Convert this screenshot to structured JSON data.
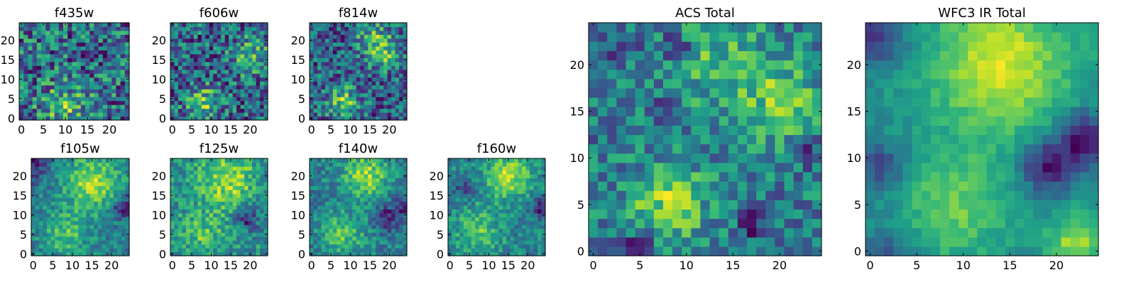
{
  "chart_data": [
    {
      "type": "heatmap",
      "title": "f435w",
      "xlim": [
        -0.5,
        24.5
      ],
      "ylim": [
        -0.5,
        24.5
      ],
      "xticks": [
        0,
        5,
        10,
        15,
        20
      ],
      "yticks": [
        0,
        5,
        10,
        15,
        20
      ],
      "colormap": "viridis",
      "grid": false,
      "seed": 11,
      "noise": 0.95,
      "hotspots": [
        [
          10,
          3,
          0.4,
          4
        ]
      ],
      "coldspots": []
    },
    {
      "type": "heatmap",
      "title": "f606w",
      "xlim": [
        -0.5,
        24.5
      ],
      "ylim": [
        -0.5,
        24.5
      ],
      "xticks": [
        0,
        5,
        10,
        15,
        20
      ],
      "yticks": [
        0,
        5,
        10,
        15,
        20
      ],
      "colormap": "viridis",
      "grid": false,
      "seed": 23,
      "noise": 0.9,
      "hotspots": [
        [
          8,
          4,
          0.5,
          3
        ],
        [
          20,
          16,
          0.5,
          3
        ]
      ],
      "coldspots": []
    },
    {
      "type": "heatmap",
      "title": "f814w",
      "xlim": [
        -0.5,
        24.5
      ],
      "ylim": [
        -0.5,
        24.5
      ],
      "xticks": [
        0,
        5,
        10,
        15,
        20
      ],
      "yticks": [
        0,
        5,
        10,
        15,
        20
      ],
      "colormap": "viridis",
      "grid": false,
      "seed": 37,
      "noise": 0.85,
      "hotspots": [
        [
          8,
          4,
          0.6,
          3
        ],
        [
          19,
          17,
          0.55,
          3
        ],
        [
          15,
          21,
          0.4,
          3
        ]
      ],
      "coldspots": []
    },
    {
      "type": "heatmap",
      "title": "f105w",
      "xlim": [
        -0.5,
        24.5
      ],
      "ylim": [
        -0.5,
        24.5
      ],
      "xticks": [
        0,
        5,
        10,
        15,
        20
      ],
      "yticks": [
        0,
        5,
        10,
        15,
        20
      ],
      "colormap": "viridis",
      "grid": false,
      "seed": 41,
      "noise": 0.45,
      "hotspots": [
        [
          15,
          18,
          0.6,
          5
        ],
        [
          8,
          5,
          0.4,
          4
        ]
      ],
      "coldspots": [
        [
          23,
          12,
          0.5,
          2
        ],
        [
          0,
          23,
          0.4,
          3
        ]
      ]
    },
    {
      "type": "heatmap",
      "title": "f125w",
      "xlim": [
        -0.5,
        24.5
      ],
      "ylim": [
        -0.5,
        24.5
      ],
      "xticks": [
        0,
        5,
        10,
        15,
        20
      ],
      "yticks": [
        0,
        5,
        10,
        15,
        20
      ],
      "colormap": "viridis",
      "grid": false,
      "seed": 53,
      "noise": 0.55,
      "hotspots": [
        [
          14,
          19,
          0.5,
          5
        ],
        [
          8,
          5,
          0.3,
          4
        ]
      ],
      "coldspots": [
        [
          19,
          9,
          0.5,
          2
        ]
      ]
    },
    {
      "type": "heatmap",
      "title": "f140w",
      "xlim": [
        -0.5,
        24.5
      ],
      "ylim": [
        -0.5,
        24.5
      ],
      "xticks": [
        0,
        5,
        10,
        15,
        20
      ],
      "yticks": [
        0,
        5,
        10,
        15,
        20
      ],
      "colormap": "viridis",
      "grid": false,
      "seed": 67,
      "noise": 0.5,
      "hotspots": [
        [
          14,
          20,
          0.6,
          4
        ],
        [
          8,
          5,
          0.4,
          4
        ]
      ],
      "coldspots": [
        [
          19,
          9,
          0.5,
          2
        ],
        [
          23,
          12,
          0.4,
          2
        ]
      ]
    },
    {
      "type": "heatmap",
      "title": "f160w",
      "xlim": [
        -0.5,
        24.5
      ],
      "ylim": [
        -0.5,
        24.5
      ],
      "xticks": [
        0,
        5,
        10,
        15,
        20
      ],
      "yticks": [
        0,
        5,
        10,
        15,
        20
      ],
      "colormap": "viridis",
      "grid": false,
      "seed": 79,
      "noise": 0.5,
      "hotspots": [
        [
          15,
          20,
          0.6,
          4
        ],
        [
          7,
          6,
          0.4,
          4
        ]
      ],
      "coldspots": [
        [
          23,
          12,
          0.5,
          2
        ],
        [
          4,
          17,
          0.4,
          2
        ]
      ]
    },
    {
      "type": "heatmap",
      "title": "ACS Total",
      "xlim": [
        -0.5,
        24.5
      ],
      "ylim": [
        -0.5,
        24.5
      ],
      "xticks": [
        0,
        5,
        10,
        15,
        20
      ],
      "yticks": [
        0,
        5,
        10,
        15,
        20
      ],
      "colormap": "viridis",
      "grid": false,
      "seed": 97,
      "noise": 0.8,
      "hotspots": [
        [
          8,
          5,
          0.7,
          3
        ],
        [
          20,
          16,
          0.6,
          3
        ],
        [
          13,
          21,
          0.45,
          4
        ]
      ],
      "coldspots": [
        [
          3,
          22,
          0.7,
          1
        ],
        [
          9,
          22,
          0.7,
          1
        ],
        [
          8,
          15,
          0.7,
          1
        ],
        [
          17,
          3,
          0.6,
          1
        ],
        [
          5,
          1,
          0.6,
          1
        ],
        [
          23,
          11,
          0.6,
          1
        ]
      ]
    },
    {
      "type": "heatmap",
      "title": "WFC3 IR Total",
      "xlim": [
        -0.5,
        24.5
      ],
      "ylim": [
        -0.5,
        24.5
      ],
      "xticks": [
        0,
        5,
        10,
        15,
        20
      ],
      "yticks": [
        0,
        5,
        10,
        15,
        20
      ],
      "colormap": "viridis",
      "grid": false,
      "seed": 113,
      "noise": 0.25,
      "hotspots": [
        [
          14,
          20,
          0.75,
          5
        ],
        [
          9,
          5,
          0.45,
          4
        ],
        [
          22,
          1,
          0.6,
          2
        ]
      ],
      "coldspots": [
        [
          23,
          12,
          0.85,
          2
        ],
        [
          19,
          9,
          0.75,
          2
        ],
        [
          1,
          23,
          0.6,
          2
        ],
        [
          1,
          9,
          0.5,
          2
        ],
        [
          2,
          0,
          0.4,
          2
        ]
      ]
    }
  ]
}
